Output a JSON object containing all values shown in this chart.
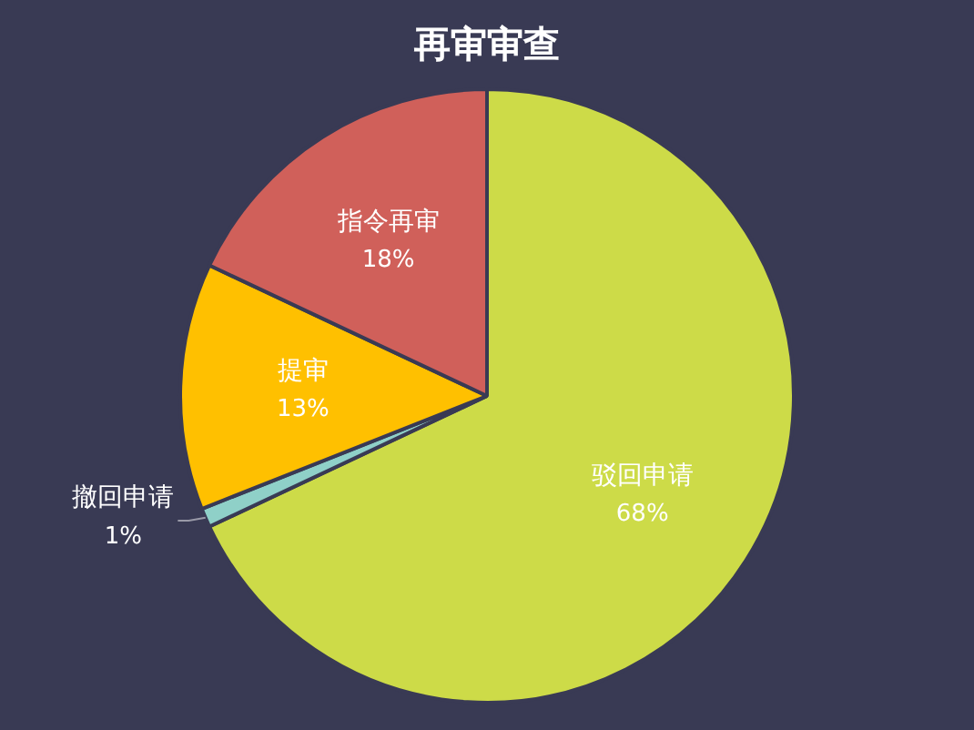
{
  "chart_data": {
    "type": "pie",
    "title": "再审审查",
    "categories": [
      "驳回申请",
      "撤回申请",
      "提审",
      "指令再审"
    ],
    "values": [
      68,
      1,
      13,
      18
    ],
    "value_labels": [
      "68%",
      "1%",
      "13%",
      "18%"
    ],
    "colors": [
      "#cddb48",
      "#8fd0c8",
      "#ffc000",
      "#d0605a"
    ],
    "legend": false
  }
}
